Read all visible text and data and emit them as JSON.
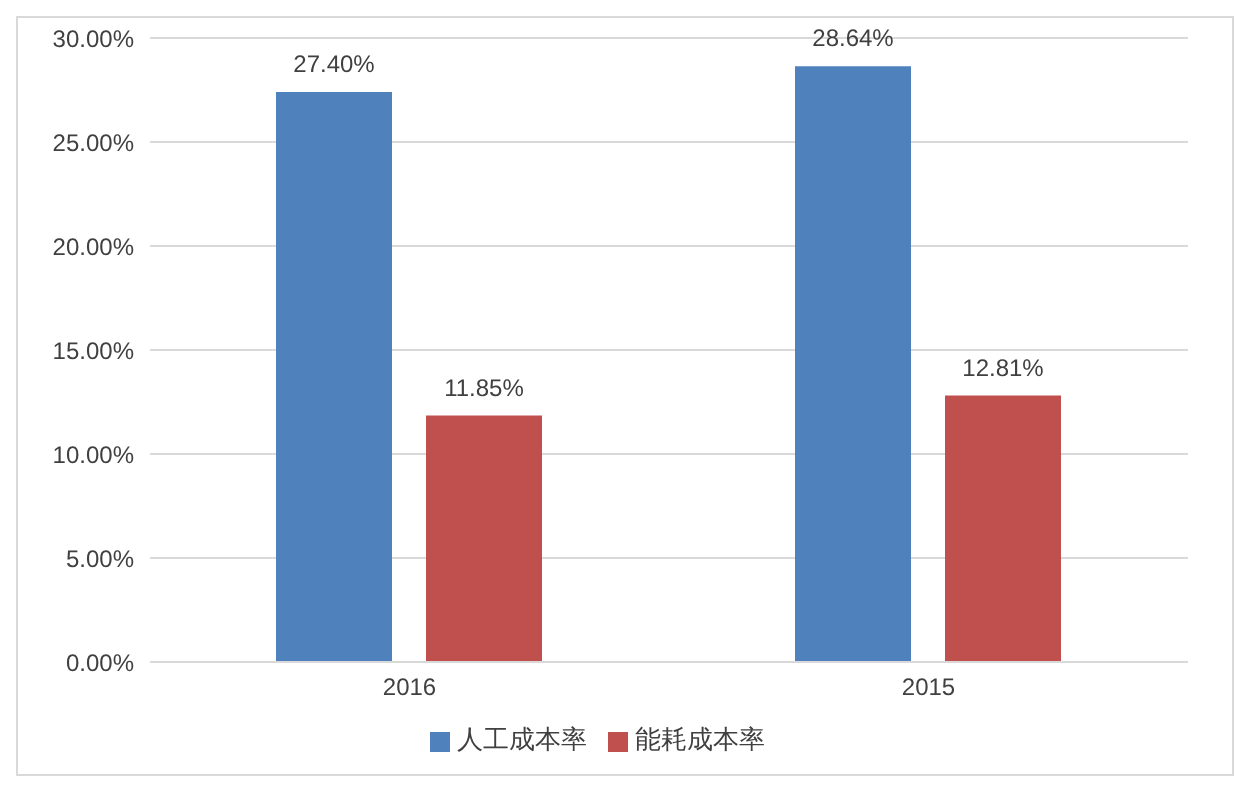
{
  "chart_data": {
    "type": "bar",
    "categories": [
      "2016",
      "2015"
    ],
    "series": [
      {
        "name": "人工成本率",
        "color": "#4f81bd",
        "values": [
          27.4,
          28.64
        ],
        "value_labels": [
          "27.40%",
          "28.64%"
        ]
      },
      {
        "name": "能耗成本率",
        "color": "#c0504d",
        "values": [
          11.85,
          12.81
        ],
        "value_labels": [
          "11.85%",
          "12.81%"
        ]
      }
    ],
    "ylim": [
      0,
      30
    ],
    "yticks": [
      {
        "value": 0,
        "label": "0.00%"
      },
      {
        "value": 5,
        "label": "5.00%"
      },
      {
        "value": 10,
        "label": "10.00%"
      },
      {
        "value": 15,
        "label": "15.00%"
      },
      {
        "value": 20,
        "label": "20.00%"
      },
      {
        "value": 25,
        "label": "25.00%"
      },
      {
        "value": 30,
        "label": "30.00%"
      }
    ],
    "grid": "y",
    "legend": "bottom"
  }
}
